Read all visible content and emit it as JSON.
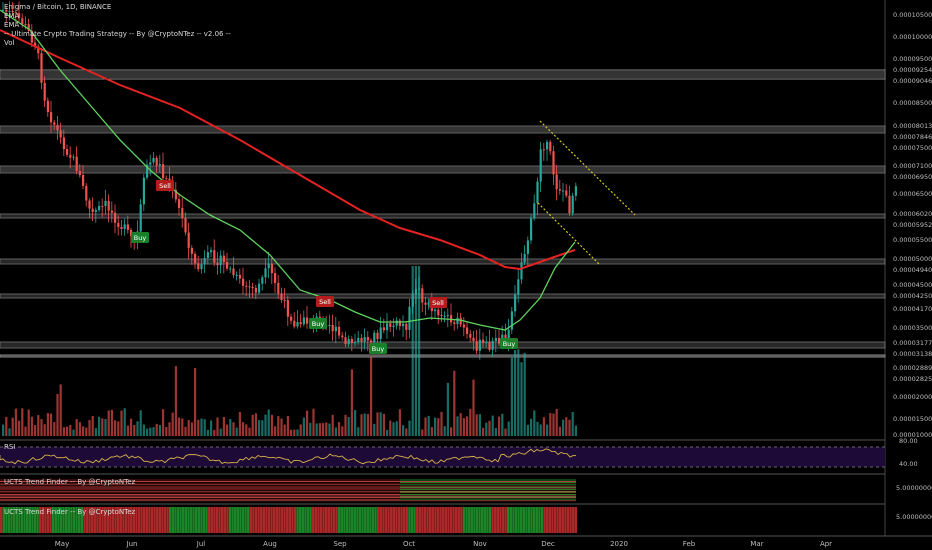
{
  "header": {
    "title": "Enigma / Bitcoin, 1D, BINANCE",
    "indicators": [
      "EMA",
      "EMA",
      "-- Ultimate Crypto Trading Strategy -- By @CryptoNTez -- v2.06 --",
      "Vol"
    ]
  },
  "price_axis": {
    "labels": [
      "0.00010500",
      "0.00010000",
      "0.00009500",
      "0.00009254",
      "0.00009046",
      "0.00008500",
      "0.00008013",
      "0.00007846",
      "0.00007500",
      "0.00007100",
      "0.00006950",
      "0.00006500",
      "0.00006020",
      "0.00005952",
      "0.00005500",
      "0.00005000",
      "0.00004940",
      "0.00004500",
      "0.00004250",
      "0.00004170",
      "0.00003500",
      "0.00003177",
      "0.00003138",
      "0.00002889",
      "0.00002825",
      "0.00002000",
      "0.00001500",
      "0.00001000"
    ]
  },
  "x_axis": {
    "labels": [
      "May",
      "Jun",
      "Jul",
      "Aug",
      "Sep",
      "Oct",
      "Nov",
      "Dec",
      "2020",
      "Feb",
      "Mar",
      "Apr"
    ]
  },
  "signals": [
    "Sell",
    "Buy",
    "Sell",
    "Buy",
    "Sell",
    "Buy",
    "Buy"
  ],
  "rsi": {
    "title": "RSI",
    "levels": [
      "80.00",
      "40.00"
    ]
  },
  "trend1": {
    "title": "UCTS Trend Finder -- By @CryptoNTez",
    "value": "5.00000000"
  },
  "trend2": {
    "title": "UCTS Trend Finder -- By @CryptoNTez",
    "value": "5.00000000"
  },
  "colors": {
    "up": "#26a69a",
    "down": "#ef5350",
    "ema_fast": "#5fd35f",
    "ema_slow": "#e52222",
    "band": "#5a5a5a",
    "trendline": "#d4c61e",
    "rsi_bg": "#1e0a36",
    "buy": "#1b7f2a",
    "sell": "#b71c1c"
  }
}
